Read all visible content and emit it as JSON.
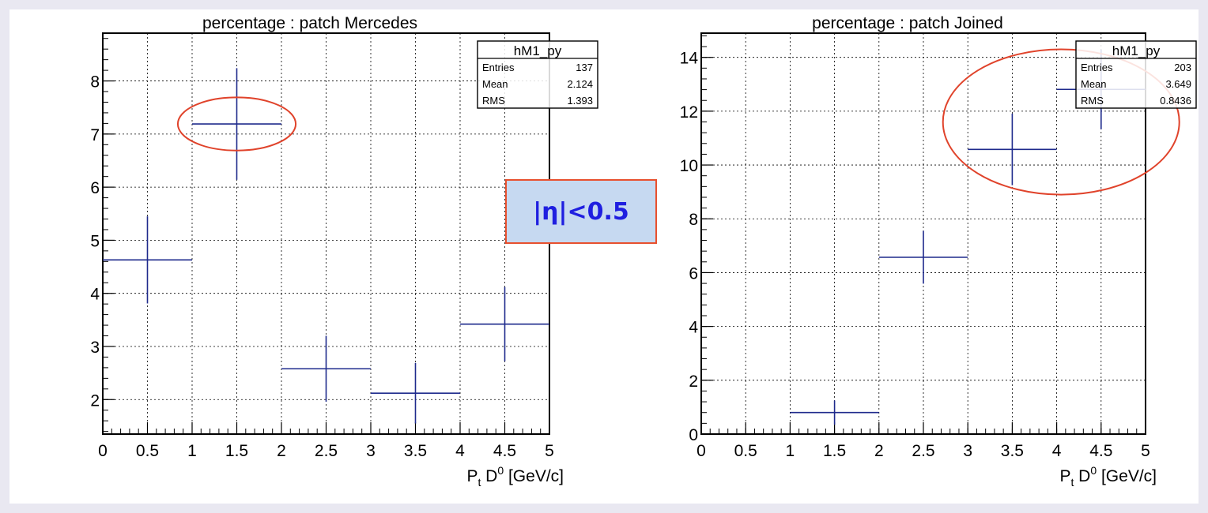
{
  "panel_label": "|η|<0.5",
  "colors": {
    "marker": "#1e2a8c",
    "highlight": "#e0432b",
    "page_background": "#e9e8f1",
    "panel_background": "#ffffff",
    "label_box_fill": "#c6d9f1",
    "label_box_border": "#e8502e",
    "label_text": "#1f1fe0"
  },
  "chart_data": [
    {
      "type": "scatter",
      "title": "percentage : patch Mercedes",
      "xlabel": "P_t D^0 [GeV/c]",
      "ylabel": "",
      "xlim": [
        0,
        5
      ],
      "ylim": [
        1.35,
        8.9
      ],
      "grid": true,
      "xticks": [
        "0",
        "0.5",
        "1",
        "1.5",
        "2",
        "2.5",
        "3",
        "3.5",
        "4",
        "4.5",
        "5"
      ],
      "yticks": [
        "2",
        "3",
        "4",
        "5",
        "6",
        "7",
        "8"
      ],
      "points": [
        {
          "x": 0.5,
          "xerr": 0.5,
          "y": 4.63,
          "yerr": 0.82
        },
        {
          "x": 1.5,
          "xerr": 0.5,
          "y": 7.19,
          "yerr": 1.05
        },
        {
          "x": 2.5,
          "xerr": 0.5,
          "y": 2.58,
          "yerr": 0.62
        },
        {
          "x": 3.5,
          "xerr": 0.5,
          "y": 2.12,
          "yerr": 0.57
        },
        {
          "x": 4.5,
          "xerr": 0.5,
          "y": 3.42,
          "yerr": 0.7
        }
      ],
      "stats": {
        "name": "hM1_py",
        "rows": [
          {
            "label": "Entries",
            "value": "137"
          },
          {
            "label": "Mean",
            "value": "2.124"
          },
          {
            "label": "RMS",
            "value": "1.393"
          }
        ]
      },
      "highlight_ellipse": {
        "x": 1.5,
        "y": 7.19,
        "rx": 0.66,
        "ry": 0.5
      }
    },
    {
      "type": "scatter",
      "title": "percentage : patch Joined",
      "xlabel": "P_t D^0 [GeV/c]",
      "ylabel": "",
      "xlim": [
        0,
        5
      ],
      "ylim": [
        0,
        14.9
      ],
      "grid": true,
      "xticks": [
        "0",
        "0.5",
        "1",
        "1.5",
        "2",
        "2.5",
        "3",
        "3.5",
        "4",
        "4.5",
        "5"
      ],
      "yticks": [
        "0",
        "2",
        "4",
        "6",
        "8",
        "10",
        "12",
        "14"
      ],
      "points": [
        {
          "x": 1.5,
          "xerr": 0.5,
          "y": 0.8,
          "yerr": 0.45
        },
        {
          "x": 2.5,
          "xerr": 0.5,
          "y": 6.57,
          "yerr": 0.98
        },
        {
          "x": 3.5,
          "xerr": 0.5,
          "y": 10.58,
          "yerr": 1.33
        },
        {
          "x": 4.5,
          "xerr": 0.5,
          "y": 12.81,
          "yerr": 1.48
        }
      ],
      "stats": {
        "name": "hM1_py",
        "rows": [
          {
            "label": "Entries",
            "value": "203"
          },
          {
            "label": "Mean",
            "value": "3.649"
          },
          {
            "label": "RMS",
            "value": "0.8436"
          }
        ]
      },
      "highlight_ellipse": {
        "x": 4.05,
        "y": 11.6,
        "rx": 1.33,
        "ry": 2.7
      }
    }
  ]
}
